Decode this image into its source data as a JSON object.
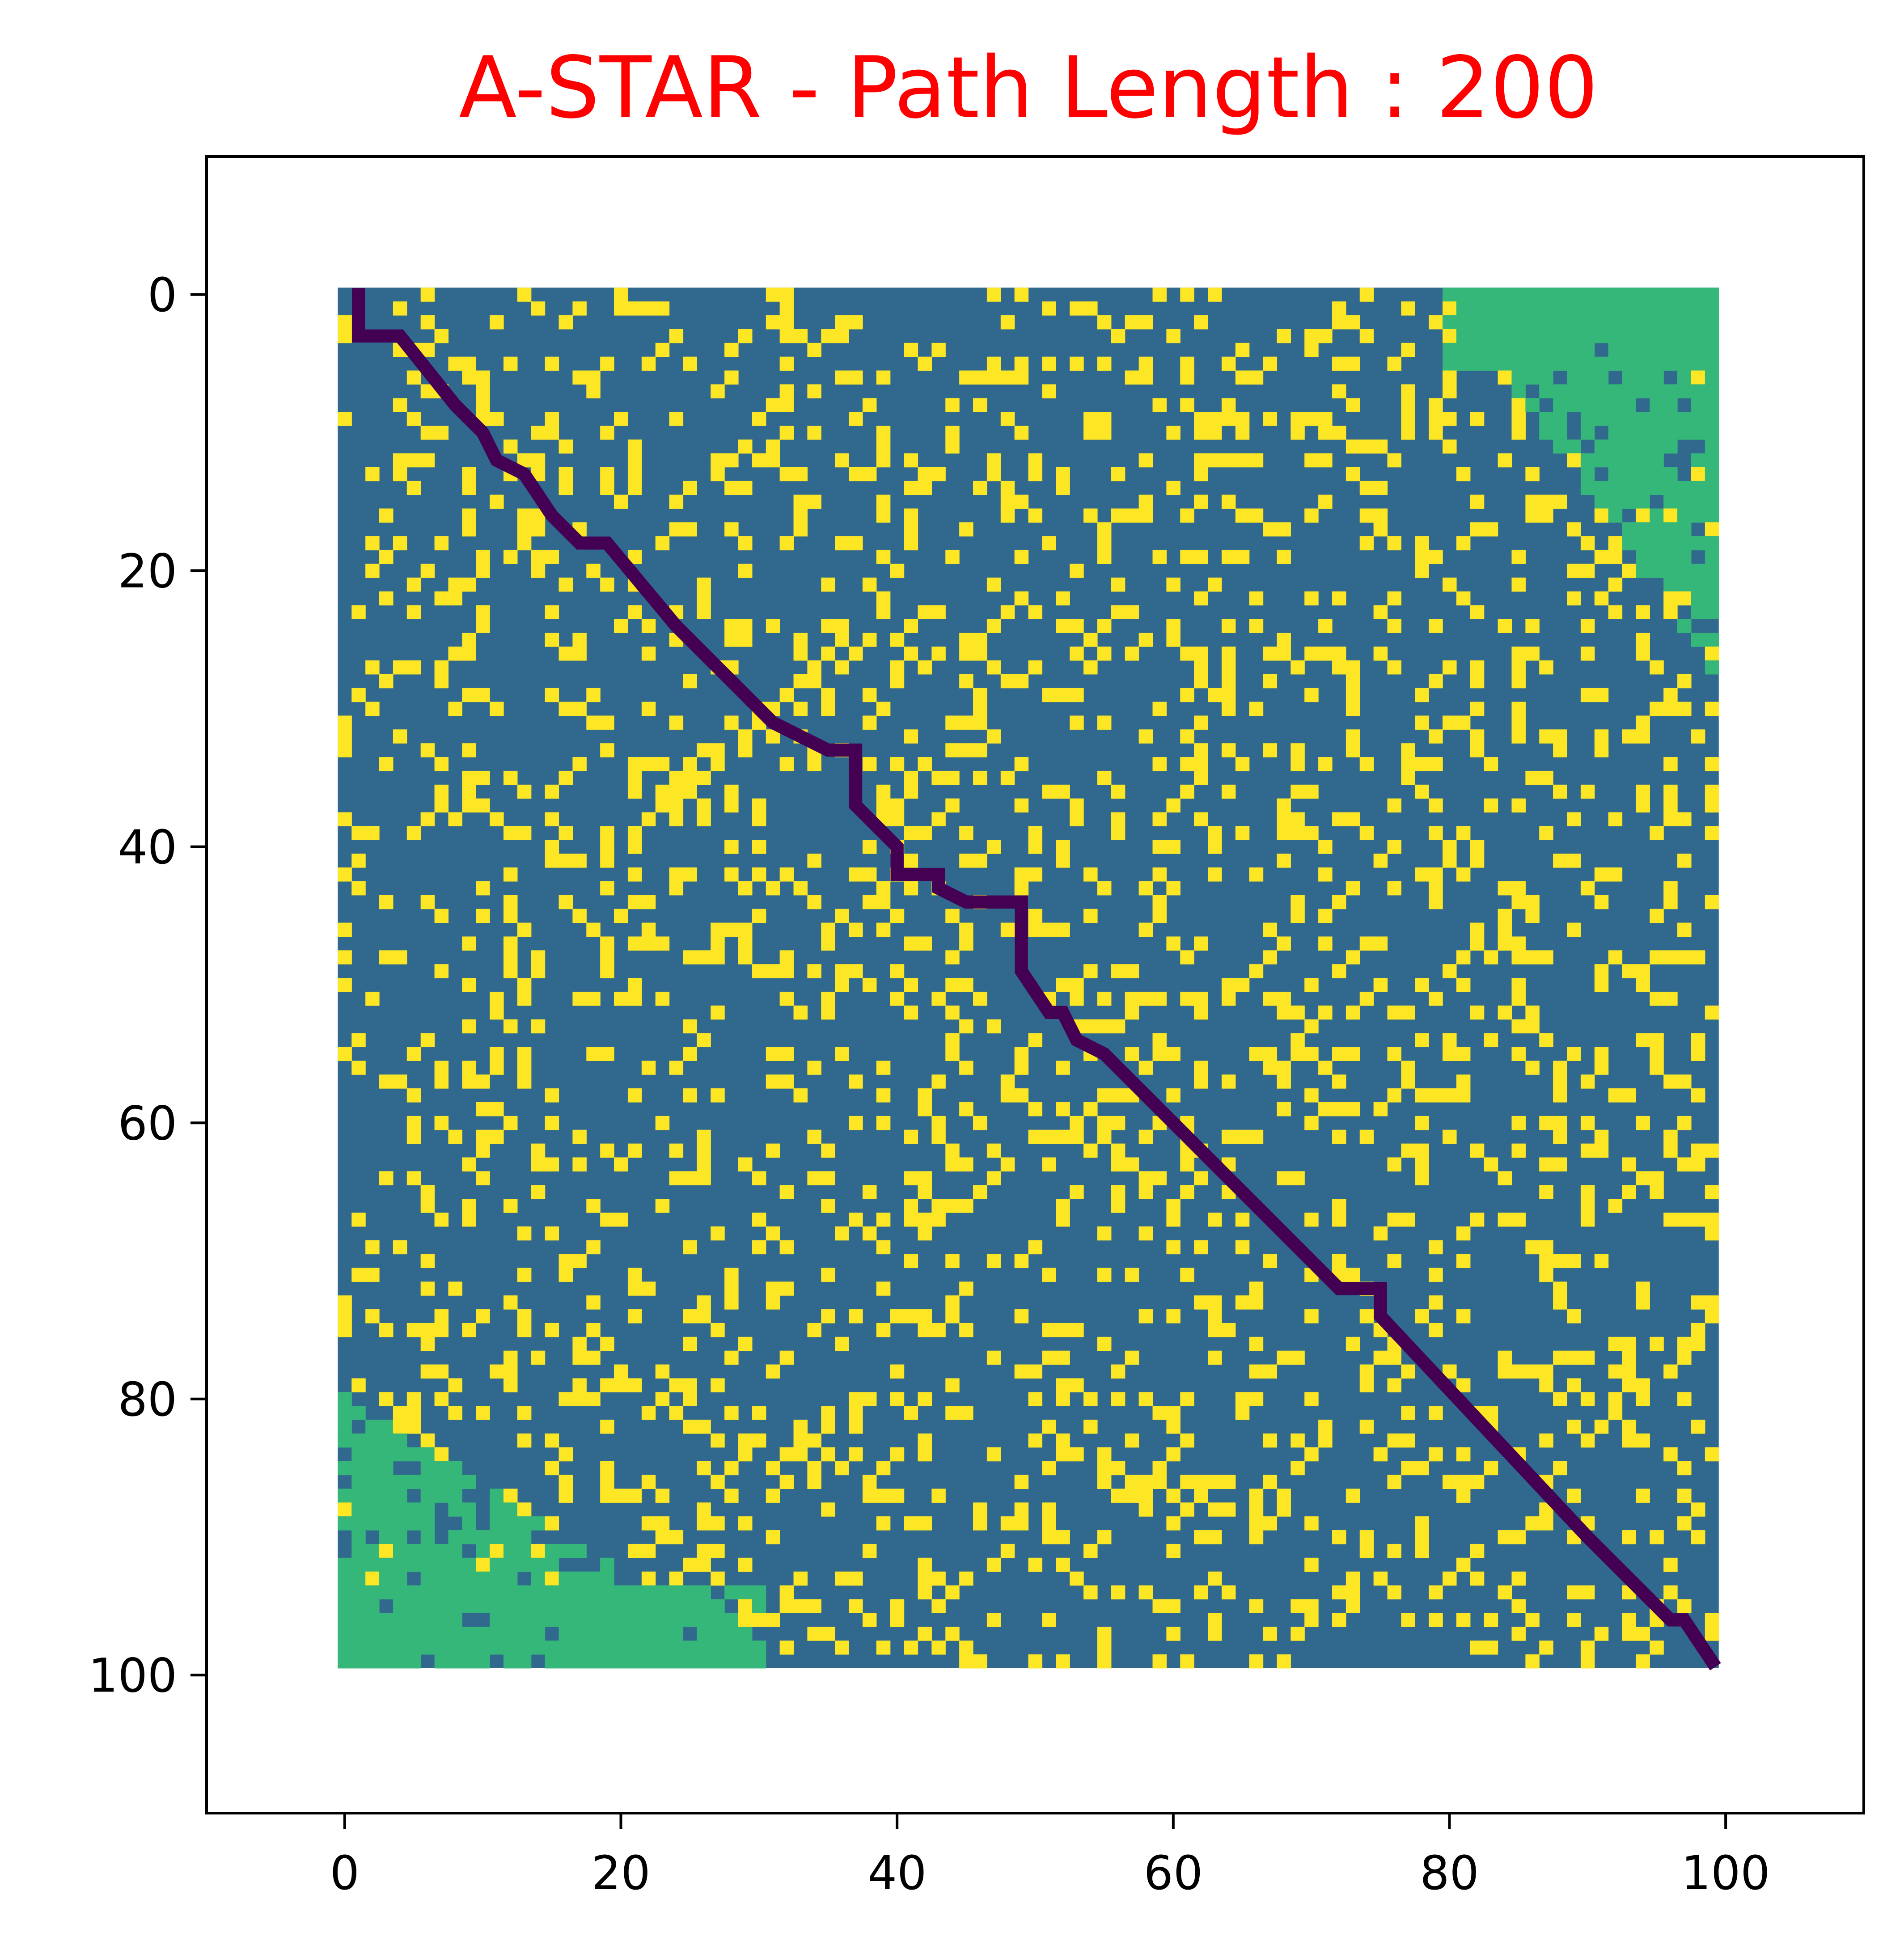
{
  "chart_data": {
    "type": "heatmap",
    "title": "A-STAR - Path Length : 200",
    "xlabel": "",
    "ylabel": "",
    "xlim": [
      -10,
      110
    ],
    "ylim": [
      110,
      -10
    ],
    "grid": false,
    "x_ticks": [
      0,
      20,
      40,
      60,
      80,
      100
    ],
    "y_ticks": [
      0,
      20,
      40,
      60,
      80,
      100
    ],
    "x_tick_labels": [
      "0",
      "20",
      "40",
      "60",
      "80",
      "100"
    ],
    "y_tick_labels": [
      "0",
      "20",
      "40",
      "60",
      "80",
      "100"
    ],
    "grid_size": [
      100,
      100
    ],
    "colormap": "viridis",
    "colors": {
      "free_cell": "#31688e",
      "obstacle": "#fde725",
      "explored_corner": "#35b779",
      "path": "#440154",
      "title": "#ff0000"
    },
    "path_length": 200,
    "path_start": [
      0,
      0
    ],
    "path_end": [
      99,
      99
    ],
    "path_vertices": [
      [
        1,
        0
      ],
      [
        1,
        3
      ],
      [
        4,
        3
      ],
      [
        8,
        8
      ],
      [
        10,
        10
      ],
      [
        11,
        12
      ],
      [
        13,
        13
      ],
      [
        15,
        16
      ],
      [
        17,
        18
      ],
      [
        19,
        18
      ],
      [
        24,
        24
      ],
      [
        27,
        27
      ],
      [
        29,
        29
      ],
      [
        31,
        31
      ],
      [
        33,
        32
      ],
      [
        35,
        33
      ],
      [
        37,
        33
      ],
      [
        37,
        37
      ],
      [
        39,
        39
      ],
      [
        40,
        40
      ],
      [
        40,
        42
      ],
      [
        43,
        42
      ],
      [
        43,
        43
      ],
      [
        45,
        44
      ],
      [
        49,
        44
      ],
      [
        49,
        49
      ],
      [
        51,
        52
      ],
      [
        52,
        52
      ],
      [
        53,
        54
      ],
      [
        55,
        55
      ],
      [
        57,
        57
      ],
      [
        65,
        65
      ],
      [
        72,
        72
      ],
      [
        75,
        72
      ],
      [
        75,
        74
      ],
      [
        90,
        90
      ],
      [
        95,
        95
      ],
      [
        96,
        96
      ],
      [
        97,
        96
      ],
      [
        99,
        99
      ]
    ]
  }
}
